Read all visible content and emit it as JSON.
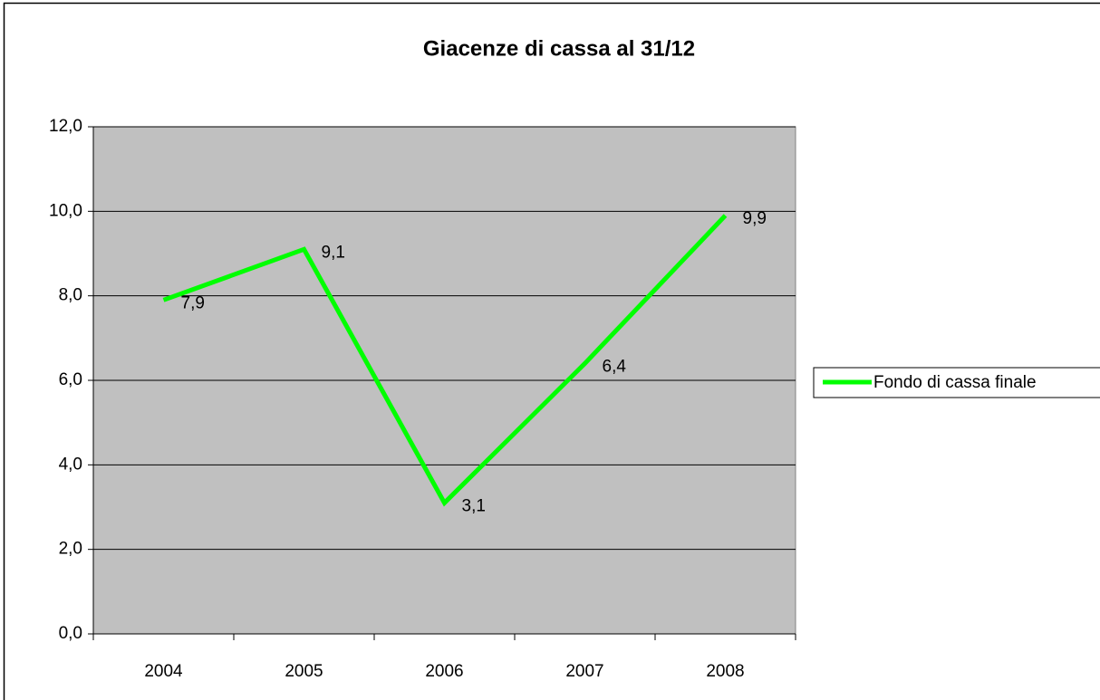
{
  "chart_data": {
    "type": "line",
    "title": "Giacenze di cassa al 31/12",
    "categories": [
      "2004",
      "2005",
      "2006",
      "2007",
      "2008"
    ],
    "series": [
      {
        "name": "Fondo di cassa finale",
        "color": "#00ff00",
        "values": [
          7.9,
          9.1,
          3.1,
          6.4,
          9.9
        ],
        "value_labels": [
          "7,9",
          "9,1",
          "3,1",
          "6,4",
          "9,9"
        ]
      }
    ],
    "ylim": [
      0,
      12
    ],
    "yticks": [
      {
        "value": 0,
        "label": "0,0"
      },
      {
        "value": 2,
        "label": "2,0"
      },
      {
        "value": 4,
        "label": "4,0"
      },
      {
        "value": 6,
        "label": "6,0"
      },
      {
        "value": 8,
        "label": "8,0"
      },
      {
        "value": 10,
        "label": "10,0"
      },
      {
        "value": 12,
        "label": "12,0"
      }
    ],
    "grid": true,
    "legend": "right",
    "plot_background": "#c0c0c0"
  }
}
